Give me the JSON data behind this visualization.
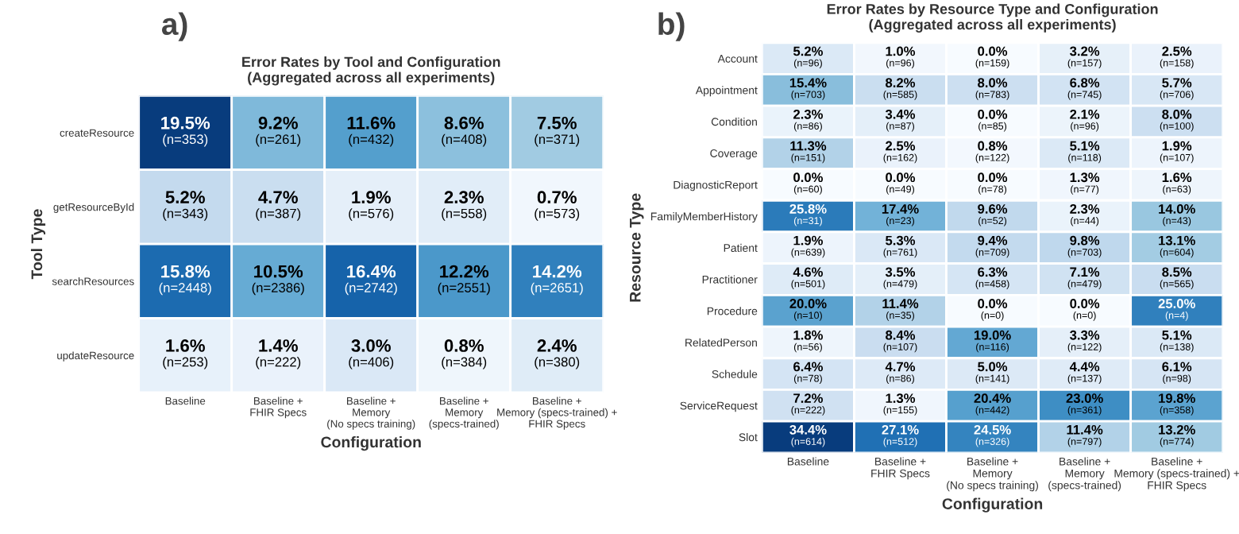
{
  "chart_data": [
    {
      "type": "heatmap",
      "title": "Error Rates by Tool and Configuration\n(Aggregated across all experiments)",
      "xlabel": "Configuration",
      "ylabel": "Tool Type",
      "categories": [
        "Baseline",
        "Baseline +\nFHIR Specs",
        "Baseline +\nMemory\n(No specs training)",
        "Baseline +\nMemory\n(specs-trained)",
        "Baseline +\nMemory (specs-trained) +\nFHIR Specs"
      ],
      "y_categories": [
        "createResource",
        "getResourceById",
        "searchResources",
        "updateResource"
      ],
      "cells": [
        [
          19.5,
          9.2,
          11.6,
          8.6,
          7.5
        ],
        [
          5.2,
          4.7,
          1.9,
          2.3,
          0.7
        ],
        [
          15.8,
          10.5,
          16.4,
          12.2,
          14.2
        ],
        [
          1.6,
          1.4,
          3.0,
          0.8,
          2.4
        ]
      ],
      "cell_labels": [
        [
          "19.5%",
          "9.2%",
          "11.6%",
          "8.6%",
          "7.5%"
        ],
        [
          "5.2%",
          "4.7%",
          "1.9%",
          "2.3%",
          "0.7%"
        ],
        [
          "15.8%",
          "10.5%",
          "16.4%",
          "12.2%",
          "14.2%"
        ],
        [
          "1.6%",
          "1.4%",
          "3.0%",
          "0.8%",
          "2.4%"
        ]
      ],
      "annotations": [
        "a)",
        "(n=353)",
        "(n=261)",
        "(n=432)",
        "(n=408)",
        "(n=371)",
        "(n=343)",
        "(n=387)",
        "(n=576)",
        "(n=558)",
        "(n=573)",
        "(n=2448)",
        "(n=2386)",
        "(n=2742)",
        "(n=2551)",
        "(n=2651)",
        "(n=253)",
        "(n=222)",
        "(n=406)",
        "(n=384)",
        "(n=380)"
      ]
    },
    {
      "type": "heatmap",
      "title": "Error Rates by Resource Type and Configuration\n(Aggregated across all experiments)",
      "xlabel": "Configuration",
      "ylabel": "Resource Type",
      "categories": [
        "Baseline",
        "Baseline +\nFHIR Specs",
        "Baseline +\nMemory\n(No specs training)",
        "Baseline +\nMemory\n(specs-trained)",
        "Baseline +\nMemory (specs-trained) +\nFHIR Specs"
      ],
      "y_categories": [
        "Account",
        "Appointment",
        "Condition",
        "Coverage",
        "DiagnosticReport",
        "FamilyMemberHistory",
        "Patient",
        "Practitioner",
        "Procedure",
        "RelatedPerson",
        "Schedule",
        "ServiceRequest",
        "Slot"
      ],
      "cells": [
        [
          5.2,
          1.0,
          0.0,
          3.2,
          2.5
        ],
        [
          15.4,
          8.2,
          8.0,
          6.8,
          5.7
        ],
        [
          2.3,
          3.4,
          0.0,
          2.1,
          8.0
        ],
        [
          11.3,
          2.5,
          0.8,
          5.1,
          1.9
        ],
        [
          0.0,
          0.0,
          0.0,
          1.3,
          1.6
        ],
        [
          25.8,
          17.4,
          9.6,
          2.3,
          14.0
        ],
        [
          1.9,
          5.3,
          9.4,
          9.8,
          13.1
        ],
        [
          4.6,
          3.5,
          6.3,
          7.1,
          8.5
        ],
        [
          20.0,
          11.4,
          0.0,
          0.0,
          25.0
        ],
        [
          1.8,
          8.4,
          19.0,
          3.3,
          5.1
        ],
        [
          6.4,
          4.7,
          5.0,
          4.4,
          6.1
        ],
        [
          7.2,
          1.3,
          20.4,
          23.0,
          19.8
        ],
        [
          34.4,
          27.1,
          24.5,
          11.4,
          13.2
        ]
      ],
      "cell_labels": [
        [
          "5.2%",
          "1.0%",
          "0.0%",
          "3.2%",
          "2.5%"
        ],
        [
          "15.4%",
          "8.2%",
          "8.0%",
          "6.8%",
          "5.7%"
        ],
        [
          "2.3%",
          "3.4%",
          "0.0%",
          "2.1%",
          "8.0%"
        ],
        [
          "11.3%",
          "2.5%",
          "0.8%",
          "5.1%",
          "1.9%"
        ],
        [
          "0.0%",
          "0.0%",
          "0.0%",
          "1.3%",
          "1.6%"
        ],
        [
          "25.8%",
          "17.4%",
          "9.6%",
          "2.3%",
          "14.0%"
        ],
        [
          "1.9%",
          "5.3%",
          "9.4%",
          "9.8%",
          "13.1%"
        ],
        [
          "4.6%",
          "3.5%",
          "6.3%",
          "7.1%",
          "8.5%"
        ],
        [
          "20.0%",
          "11.4%",
          "0.0%",
          "0.0%",
          "25.0%"
        ],
        [
          "1.8%",
          "8.4%",
          "19.0%",
          "3.3%",
          "5.1%"
        ],
        [
          "6.4%",
          "4.7%",
          "5.0%",
          "4.4%",
          "6.1%"
        ],
        [
          "7.2%",
          "1.3%",
          "20.4%",
          "23.0%",
          "19.8%"
        ],
        [
          "34.4%",
          "27.1%",
          "24.5%",
          "11.4%",
          "13.2%"
        ]
      ],
      "annotations": [
        "b)",
        "(n=96)",
        "(n=96)",
        "(n=159)",
        "(n=157)",
        "(n=158)",
        "(n=703)",
        "(n=585)",
        "(n=783)",
        "(n=745)",
        "(n=706)",
        "(n=86)",
        "(n=87)",
        "(n=85)",
        "(n=96)",
        "(n=100)",
        "(n=151)",
        "(n=162)",
        "(n=122)",
        "(n=118)",
        "(n=107)",
        "(n=60)",
        "(n=49)",
        "(n=78)",
        "(n=77)",
        "(n=63)",
        "(n=31)",
        "(n=23)",
        "(n=52)",
        "(n=44)",
        "(n=43)",
        "(n=639)",
        "(n=761)",
        "(n=709)",
        "(n=703)",
        "(n=604)",
        "(n=501)",
        "(n=479)",
        "(n=458)",
        "(n=479)",
        "(n=565)",
        "(n=10)",
        "(n=35)",
        "(n=0)",
        "(n=0)",
        "(n=4)",
        "(n=56)",
        "(n=107)",
        "(n=116)",
        "(n=122)",
        "(n=138)",
        "(n=78)",
        "(n=86)",
        "(n=141)",
        "(n=137)",
        "(n=98)",
        "(n=222)",
        "(n=155)",
        "(n=442)",
        "(n=361)",
        "(n=358)",
        "(n=614)",
        "(n=512)",
        "(n=326)",
        "(n=797)",
        "(n=774)"
      ]
    }
  ]
}
